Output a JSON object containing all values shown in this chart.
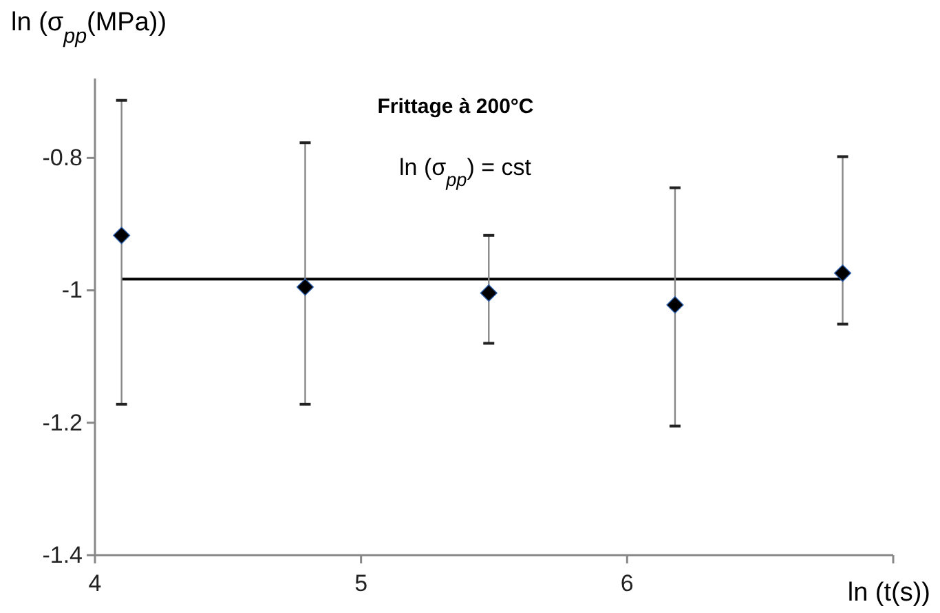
{
  "chart_data": {
    "type": "scatter",
    "title": "Frittage à 200°C",
    "xlabel": "ln (t(s))",
    "ylabel": "ln (σ$_{pp}$(MPa))",
    "annotations": [
      "ln (σ$_{pp}$) = cst"
    ],
    "xlim": [
      4,
      7
    ],
    "xticks": [
      4,
      5,
      6,
      {
        "value": 7,
        "label": null
      }
    ],
    "ylim": [
      -1.4,
      -0.68
    ],
    "yticks": [
      -1.4,
      -1.2,
      -1,
      -0.8
    ],
    "grid": false,
    "series": [
      {
        "type": "scatter",
        "color": "#000000",
        "marker": "diamond",
        "x": [
          4.1,
          4.79,
          5.48,
          6.18,
          6.81
        ],
        "values": [
          -0.917,
          -0.995,
          -1.004,
          -1.022,
          -0.974
        ],
        "errors": [
          [
            -1.172,
            -0.713
          ],
          [
            -1.172,
            -0.777
          ],
          [
            -1.08,
            -0.917
          ],
          [
            -1.205,
            -0.845
          ],
          [
            -1.051,
            -0.798
          ]
        ]
      },
      {
        "type": "line",
        "color": "#000000",
        "marker": "none",
        "line_style": "solid",
        "x": [
          4.1,
          6.81
        ],
        "values": [
          -0.983,
          -0.983
        ]
      }
    ]
  }
}
